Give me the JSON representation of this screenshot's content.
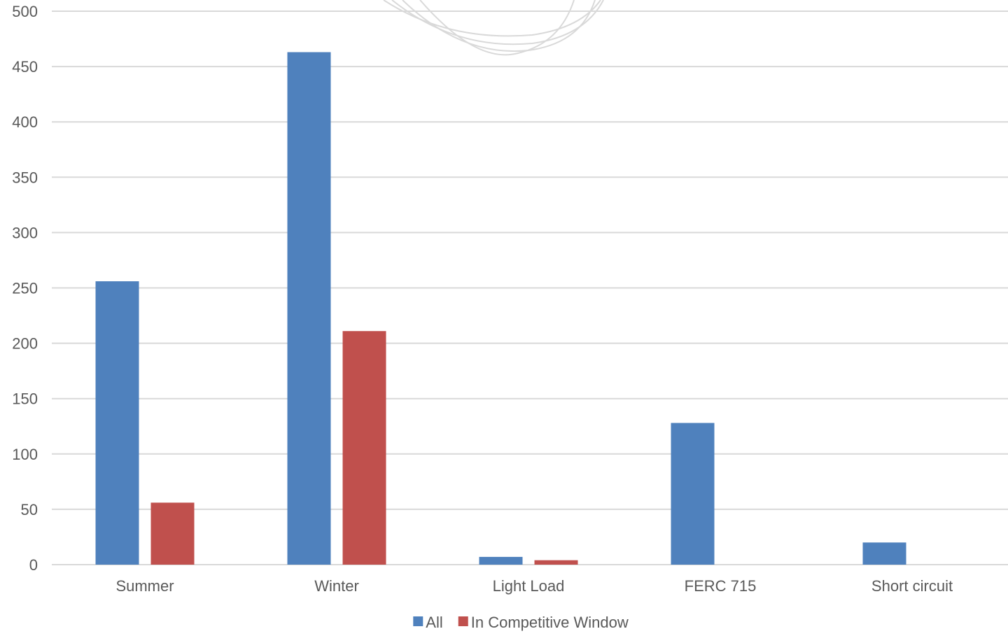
{
  "chart_data": {
    "type": "bar",
    "categories": [
      "Summer",
      "Winter",
      "Light Load",
      "FERC 715",
      "Short circuit"
    ],
    "series": [
      {
        "name": "All",
        "values": [
          256,
          463,
          7,
          128,
          20
        ],
        "color": "#4F81BD"
      },
      {
        "name": "In Competitive Window",
        "values": [
          56,
          211,
          4,
          0,
          0
        ],
        "color": "#C0504D"
      }
    ],
    "title": "",
    "xlabel": "",
    "ylabel": "",
    "ylim": [
      0,
      500
    ],
    "yticks": [
      "0",
      "50",
      "100",
      "150",
      "200",
      "250",
      "300",
      "350",
      "400",
      "450",
      "500"
    ],
    "grid": true,
    "legend_position": "bottom",
    "colors": {
      "gridline": "#D9D9D9",
      "text": "#595959",
      "watermark": "#D9D9D9"
    }
  }
}
